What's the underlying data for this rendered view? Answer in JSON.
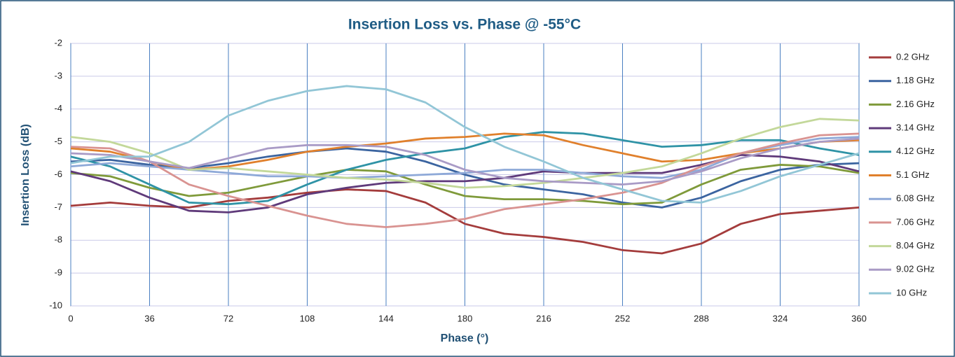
{
  "chart_data": {
    "type": "line",
    "title": "Insertion Loss vs. Phase @ -55°C",
    "x_label": "Phase (°)",
    "y_label": "Insertion Loss (dB)",
    "x": [
      0,
      18,
      36,
      54,
      72,
      90,
      108,
      126,
      144,
      162,
      180,
      198,
      216,
      234,
      252,
      270,
      288,
      306,
      324,
      342,
      360
    ],
    "xlim": [
      0,
      360
    ],
    "xticks": [
      0,
      36,
      72,
      108,
      144,
      180,
      216,
      252,
      288,
      324,
      360
    ],
    "ylim": [
      -10,
      -2
    ],
    "yticks": [
      -10,
      -9,
      -8,
      -7,
      -6,
      -5,
      -4,
      -3,
      -2
    ],
    "grid": true,
    "legend": "right",
    "series": [
      {
        "name": "0.2 GHz",
        "color": "#a43c3c",
        "values": [
          -6.95,
          -6.85,
          -6.95,
          -7.0,
          -6.8,
          -6.7,
          -6.55,
          -6.45,
          -6.5,
          -6.85,
          -7.5,
          -7.8,
          -7.9,
          -8.05,
          -8.3,
          -8.4,
          -8.1,
          -7.5,
          -7.2,
          -7.1,
          -7.0
        ]
      },
      {
        "name": "1.18 GHz",
        "color": "#3b64a0",
        "values": [
          -5.6,
          -5.55,
          -5.7,
          -5.8,
          -5.65,
          -5.45,
          -5.3,
          -5.2,
          -5.3,
          -5.6,
          -6.0,
          -6.3,
          -6.45,
          -6.6,
          -6.85,
          -7.0,
          -6.7,
          -6.2,
          -5.85,
          -5.7,
          -5.65
        ]
      },
      {
        "name": "2.16 GHz",
        "color": "#7f9a3a",
        "values": [
          -5.95,
          -6.05,
          -6.4,
          -6.65,
          -6.55,
          -6.3,
          -6.05,
          -5.85,
          -5.9,
          -6.3,
          -6.65,
          -6.75,
          -6.75,
          -6.8,
          -6.9,
          -6.85,
          -6.3,
          -5.85,
          -5.7,
          -5.75,
          -5.95
        ]
      },
      {
        "name": "3.14 GHz",
        "color": "#5f3a7a",
        "values": [
          -5.9,
          -6.2,
          -6.7,
          -7.1,
          -7.15,
          -7.0,
          -6.6,
          -6.4,
          -6.25,
          -6.2,
          -6.2,
          -6.1,
          -5.9,
          -5.95,
          -5.95,
          -5.95,
          -5.7,
          -5.4,
          -5.45,
          -5.6,
          -5.9
        ]
      },
      {
        "name": "4.12 GHz",
        "color": "#2f93a6",
        "values": [
          -5.45,
          -5.75,
          -6.3,
          -6.85,
          -6.9,
          -6.8,
          -6.3,
          -5.85,
          -5.55,
          -5.35,
          -5.2,
          -4.85,
          -4.7,
          -4.75,
          -4.95,
          -5.15,
          -5.1,
          -4.95,
          -4.95,
          -5.2,
          -5.4
        ]
      },
      {
        "name": "5.1 GHz",
        "color": "#e0802c",
        "values": [
          -5.2,
          -5.3,
          -5.6,
          -5.85,
          -5.75,
          -5.55,
          -5.3,
          -5.15,
          -5.05,
          -4.9,
          -4.85,
          -4.75,
          -4.8,
          -5.1,
          -5.35,
          -5.6,
          -5.55,
          -5.35,
          -5.2,
          -5.0,
          -4.95
        ]
      },
      {
        "name": "6.08 GHz",
        "color": "#8ea9d8",
        "values": [
          -5.75,
          -5.65,
          -5.75,
          -5.85,
          -5.95,
          -6.05,
          -6.05,
          -6.1,
          -6.05,
          -6.0,
          -5.95,
          -5.85,
          -5.85,
          -5.95,
          -6.05,
          -6.1,
          -5.85,
          -5.35,
          -5.1,
          -4.9,
          -4.85
        ]
      },
      {
        "name": "7.06 GHz",
        "color": "#d99391",
        "values": [
          -5.15,
          -5.2,
          -5.6,
          -6.3,
          -6.65,
          -6.95,
          -7.25,
          -7.5,
          -7.6,
          -7.5,
          -7.35,
          -7.05,
          -6.9,
          -6.75,
          -6.55,
          -6.25,
          -5.75,
          -5.35,
          -5.05,
          -4.8,
          -4.75
        ]
      },
      {
        "name": "8.04 GHz",
        "color": "#c3d89a",
        "values": [
          -4.85,
          -5.0,
          -5.35,
          -5.85,
          -5.8,
          -5.9,
          -6.0,
          -6.1,
          -6.15,
          -6.25,
          -6.4,
          -6.35,
          -6.25,
          -6.1,
          -5.95,
          -5.75,
          -5.35,
          -4.9,
          -4.55,
          -4.3,
          -4.35
        ]
      },
      {
        "name": "9.02 GHz",
        "color": "#a99bc6",
        "values": [
          -5.35,
          -5.4,
          -5.6,
          -5.8,
          -5.5,
          -5.2,
          -5.1,
          -5.1,
          -5.15,
          -5.4,
          -5.85,
          -6.1,
          -6.2,
          -6.25,
          -6.3,
          -6.2,
          -5.9,
          -5.5,
          -5.2,
          -5.0,
          -4.9
        ]
      },
      {
        "name": "10 GHz",
        "color": "#92c6d6",
        "values": [
          -5.65,
          -5.45,
          -5.45,
          -5.0,
          -4.2,
          -3.75,
          -3.45,
          -3.3,
          -3.4,
          -3.8,
          -4.55,
          -5.15,
          -5.6,
          -6.1,
          -6.45,
          -6.8,
          -6.85,
          -6.5,
          -6.05,
          -5.7,
          -5.35
        ]
      }
    ]
  }
}
